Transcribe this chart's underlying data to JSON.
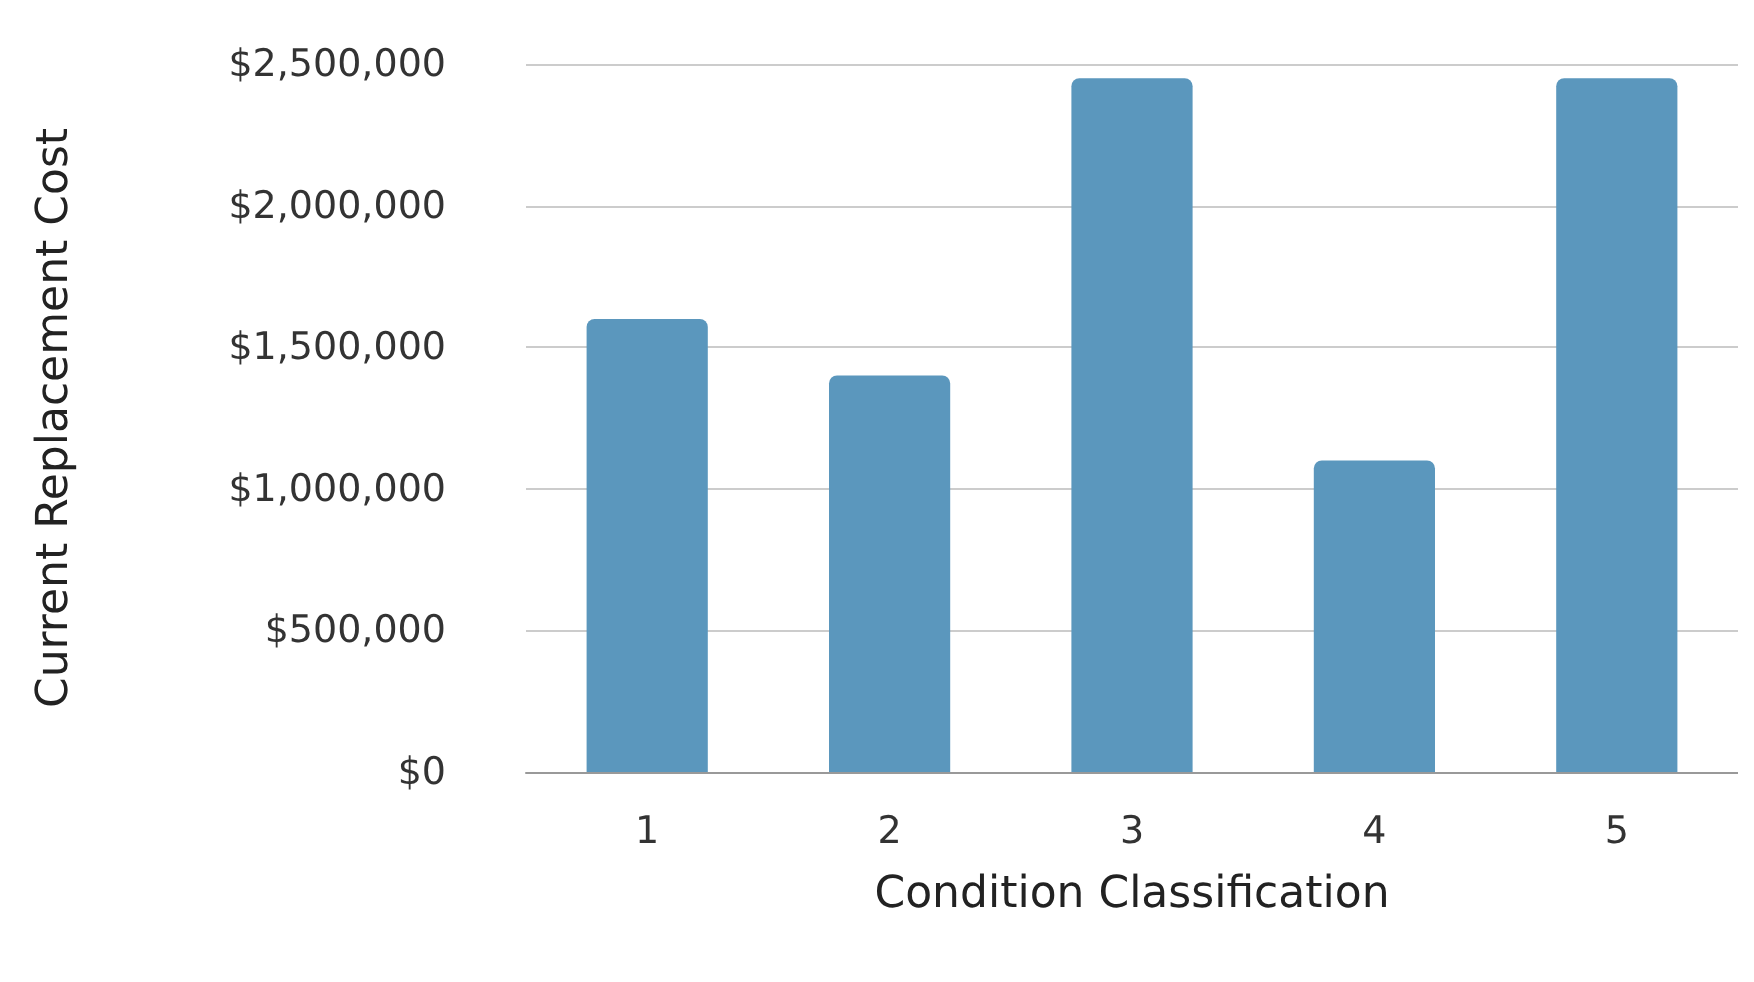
{
  "chart_data": {
    "type": "bar",
    "xlabel": "Condition Classification",
    "ylabel": "Current Replacement Cost",
    "categories": [
      "1",
      "2",
      "3",
      "4",
      "5"
    ],
    "values": [
      1600000,
      1400000,
      2450000,
      1100000,
      2450000
    ],
    "color": "#5b97bd",
    "ylim": [
      0,
      2500000
    ],
    "yticks": [
      {
        "value": 0,
        "label": "$0"
      },
      {
        "value": 500000,
        "label": "$500,000"
      },
      {
        "value": 1000000,
        "label": "$1,000,000"
      },
      {
        "value": 1500000,
        "label": "$1,500,000"
      },
      {
        "value": 2000000,
        "label": "$2,000,000"
      },
      {
        "value": 2500000,
        "label": "$2,500,000"
      }
    ],
    "grid": "y"
  }
}
